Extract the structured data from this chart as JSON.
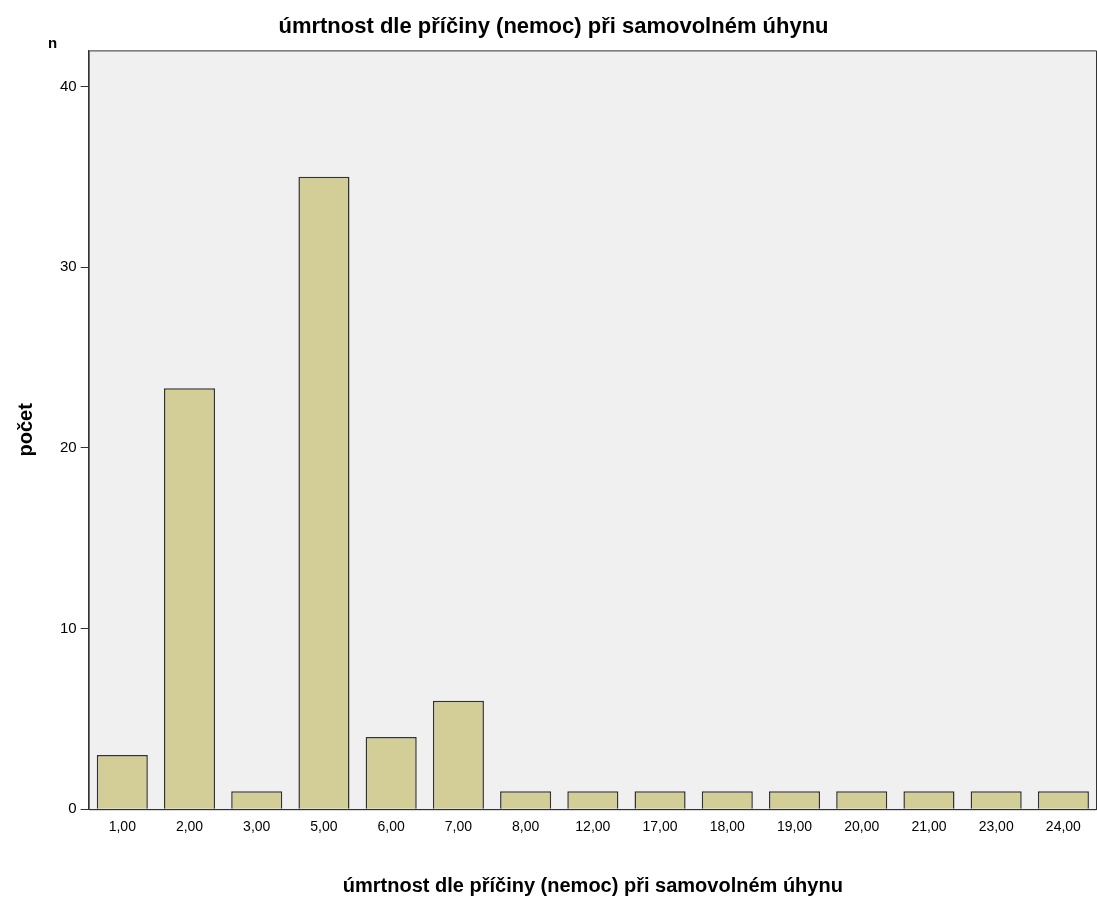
{
  "chart_data": {
    "type": "bar",
    "title": "úmrtnost dle příčiny (nemoc) při samovolném úhynu",
    "xlabel": "úmrtnost dle příčiny (nemoc) při samovolném úhynu",
    "ylabel": "počet",
    "annotations": [
      "n"
    ],
    "categories": [
      "1,00",
      "2,00",
      "3,00",
      "5,00",
      "6,00",
      "7,00",
      "8,00",
      "12,00",
      "17,00",
      "18,00",
      "19,00",
      "20,00",
      "21,00",
      "23,00",
      "24,00"
    ],
    "values": [
      3,
      23.3,
      1,
      35,
      4,
      6,
      1,
      1,
      1,
      1,
      1,
      1,
      1,
      1,
      1
    ],
    "color": "#d3ce97",
    "ylim": [
      0,
      42
    ],
    "yticks": [
      0,
      10,
      20,
      30,
      40
    ],
    "grid": false,
    "legend": false
  }
}
